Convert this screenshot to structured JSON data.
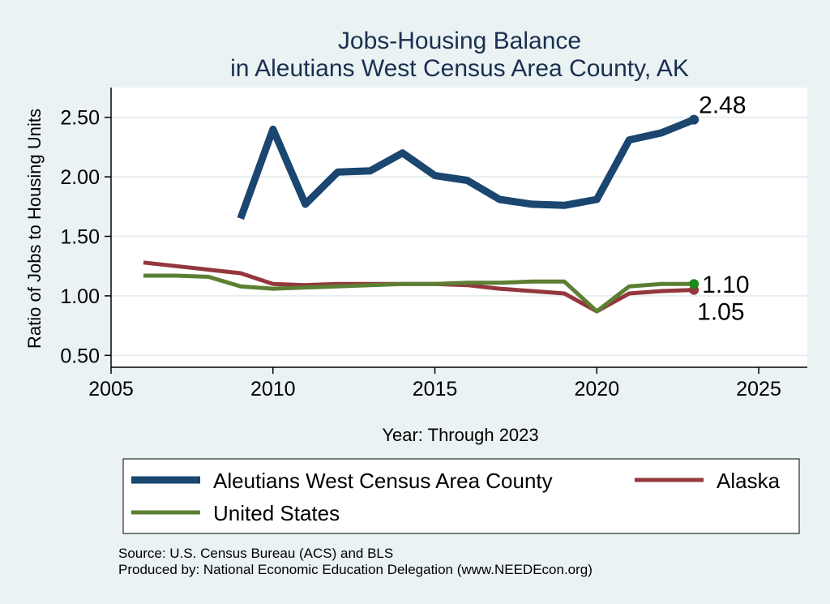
{
  "chart_data": {
    "type": "line",
    "title_lines": [
      "Jobs-Housing Balance",
      "in Aleutians West Census Area County, AK"
    ],
    "xlabel": "Year: Through 2023",
    "ylabel": "Ratio of Jobs to Housing Units",
    "xlim": [
      2005,
      2026.5
    ],
    "ylim": [
      0.4,
      2.75
    ],
    "x_ticks": [
      2005,
      2010,
      2015,
      2020,
      2025
    ],
    "y_ticks": [
      0.5,
      1.0,
      1.5,
      2.0,
      2.5
    ],
    "y_tick_labels": [
      "0.50",
      "1.00",
      "1.50",
      "2.00",
      "2.50"
    ],
    "grid": true,
    "legend_position": "bottom",
    "series": [
      {
        "name": "Aleutians West Census Area County",
        "color": "#1a4670",
        "x": [
          2009,
          2010,
          2011,
          2012,
          2013,
          2014,
          2015,
          2016,
          2017,
          2018,
          2019,
          2020,
          2021,
          2022,
          2023
        ],
        "values": [
          1.65,
          2.4,
          1.77,
          2.04,
          2.05,
          2.2,
          2.01,
          1.97,
          1.81,
          1.77,
          1.76,
          1.81,
          2.31,
          2.37,
          2.48
        ],
        "end_label": "2.48"
      },
      {
        "name": "Alaska",
        "color": "#94373d",
        "x": [
          2006,
          2007,
          2008,
          2009,
          2010,
          2011,
          2012,
          2013,
          2014,
          2015,
          2016,
          2017,
          2018,
          2019,
          2020,
          2021,
          2022,
          2023
        ],
        "values": [
          1.28,
          1.25,
          1.22,
          1.19,
          1.1,
          1.09,
          1.1,
          1.1,
          1.1,
          1.1,
          1.09,
          1.06,
          1.04,
          1.02,
          0.87,
          1.02,
          1.04,
          1.05
        ],
        "end_label": "1.05"
      },
      {
        "name": "United States",
        "color": "#5c7f33",
        "x": [
          2006,
          2007,
          2008,
          2009,
          2010,
          2011,
          2012,
          2013,
          2014,
          2015,
          2016,
          2017,
          2018,
          2019,
          2020,
          2021,
          2022,
          2023
        ],
        "values": [
          1.17,
          1.17,
          1.16,
          1.08,
          1.06,
          1.07,
          1.08,
          1.09,
          1.1,
          1.1,
          1.11,
          1.11,
          1.12,
          1.12,
          0.87,
          1.08,
          1.1,
          1.1
        ],
        "end_label": "1.10",
        "end_marker_color": "#1a8a1a"
      }
    ],
    "source_lines": [
      "Source: U.S. Census Bureau (ACS) and BLS",
      "Produced by: National Economic Education Delegation (www.NEEDEcon.org)"
    ]
  }
}
